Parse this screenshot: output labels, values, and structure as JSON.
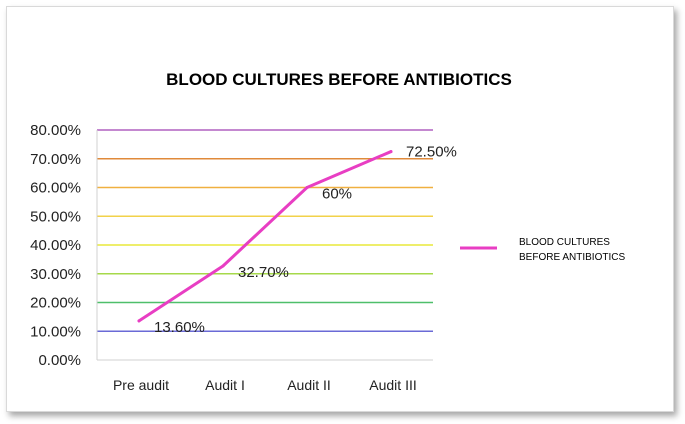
{
  "chart_data": {
    "type": "line",
    "title": "BLOOD CULTURES BEFORE ANTIBIOTICS",
    "categories": [
      "Pre audit",
      "Audit I",
      "Audit II",
      "Audit III"
    ],
    "series": [
      {
        "name": "BLOOD CULTURES BEFORE ANTIBIOTICS",
        "values": [
          13.6,
          32.7,
          60,
          72.5
        ],
        "labels": [
          "13.60%",
          "32.70%",
          "60%",
          "72.50%"
        ],
        "color": "#e83ec3"
      }
    ],
    "ylim": [
      0,
      80
    ],
    "yticks": [
      "0.00%",
      "10.00%",
      "20.00%",
      "30.00%",
      "40.00%",
      "50.00%",
      "60.00%",
      "70.00%",
      "80.00%"
    ],
    "gridline_colors": [
      "#6a6ad6",
      "#4fbf6a",
      "#a6d94a",
      "#e8e83a",
      "#f2d24a",
      "#f0b040",
      "#e08a3a",
      "#b060c0"
    ],
    "legend_position": "right",
    "legend_lines": [
      "BLOOD CULTURES",
      "BEFORE ANTIBIOTICS"
    ],
    "grid": true
  }
}
